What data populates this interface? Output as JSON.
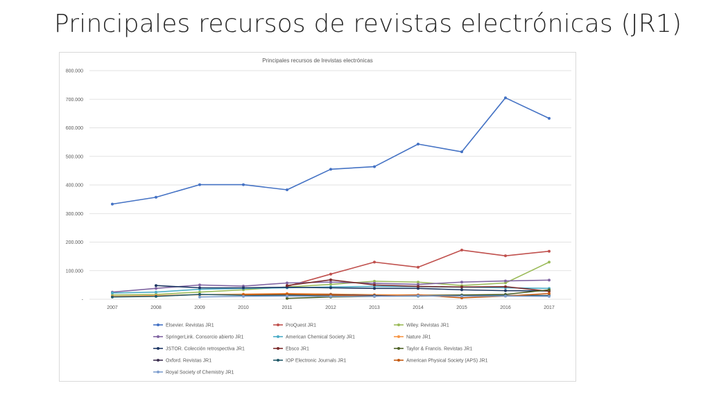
{
  "slide": {
    "title": "Principales recursos de revistas electrónicas (JR1)"
  },
  "chart_data": {
    "type": "line",
    "title": "Principales recursos de lrevistas electrónicas",
    "xlabel": "",
    "ylabel": "",
    "ylim": [
      0,
      800000
    ],
    "yticks": [
      "-",
      "100.000",
      "200.000",
      "300.000",
      "400.000",
      "500.000",
      "600.000",
      "700.000",
      "800.000"
    ],
    "x": [
      "2007",
      "2008",
      "2009",
      "2010",
      "2011",
      "2012",
      "2013",
      "2014",
      "2015",
      "2016",
      "2017"
    ],
    "grid": true,
    "legend_position": "bottom",
    "series": [
      {
        "name": "Elsevier. Revistas JR1",
        "color": "#4472c4",
        "values": [
          333000,
          357000,
          401000,
          401000,
          383000,
          455000,
          464000,
          543000,
          516000,
          705000,
          633000
        ]
      },
      {
        "name": "ProQuest JR1",
        "color": "#c0504d",
        "values": [
          null,
          null,
          null,
          null,
          45000,
          88000,
          130000,
          112000,
          172000,
          152000,
          168000
        ]
      },
      {
        "name": "Wiley. Revistas JR1",
        "color": "#9bbb59",
        "values": [
          15000,
          17000,
          25000,
          33000,
          43000,
          52000,
          63000,
          60000,
          48000,
          57000,
          130000
        ]
      },
      {
        "name": "SpringerLink. Consorcio abierto JR1",
        "color": "#8064a2",
        "values": [
          25000,
          38000,
          50000,
          46000,
          57000,
          60000,
          56000,
          52000,
          60000,
          64000,
          67000
        ]
      },
      {
        "name": "American Chemical Society JR1",
        "color": "#4bacc6",
        "values": [
          22000,
          25000,
          35000,
          38000,
          40000,
          43000,
          45000,
          44000,
          42000,
          40000,
          38000
        ]
      },
      {
        "name": "Nature JR1",
        "color": "#f79646",
        "values": [
          10000,
          13000,
          16000,
          18000,
          20000,
          18000,
          16000,
          15000,
          14000,
          13000,
          12000
        ]
      },
      {
        "name": "JSTOR. Colección retrospectiva JR1",
        "color": "#1f3864",
        "values": [
          null,
          48000,
          40000,
          40000,
          42000,
          40000,
          38000,
          38000,
          33000,
          30000,
          29000
        ]
      },
      {
        "name": "Ebsco JR1",
        "color": "#7b2c2c",
        "values": [
          null,
          null,
          null,
          null,
          48000,
          68000,
          50000,
          45000,
          43000,
          44000,
          28000
        ]
      },
      {
        "name": "Taylor & Francis. Revistas JR1",
        "color": "#4f6228",
        "values": [
          null,
          null,
          null,
          null,
          3000,
          8000,
          10000,
          13000,
          15000,
          17000,
          33000
        ]
      },
      {
        "name": "Oxford. Revistas JR1",
        "color": "#3f3151",
        "values": [
          null,
          null,
          null,
          14000,
          17000,
          16000,
          13000,
          12000,
          12000,
          13000,
          13000
        ]
      },
      {
        "name": "IOP Electronic Journals JR1",
        "color": "#215968",
        "values": [
          8000,
          10000,
          17000,
          14000,
          14000,
          12000,
          11000,
          11000,
          12000,
          13000,
          12000
        ]
      },
      {
        "name": "American Physical Society (APS) JR1",
        "color": "#c55a11",
        "values": [
          null,
          null,
          null,
          16000,
          18000,
          15000,
          10000,
          15000,
          5000,
          11000,
          20000
        ]
      },
      {
        "name": "Royal Society of Chemistry JR1",
        "color": "#7f9fcf",
        "values": [
          null,
          null,
          8000,
          10000,
          11000,
          10000,
          10000,
          12000,
          11000,
          11000,
          10000
        ]
      }
    ]
  }
}
